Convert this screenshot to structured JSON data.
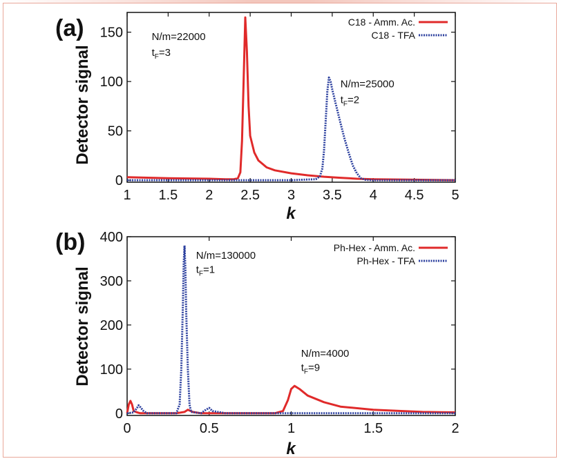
{
  "colors": {
    "red": "#e02a2a",
    "blue": "#2b3f9e",
    "frame": "#e9a79a"
  },
  "chart_data": [
    {
      "type": "line",
      "panel_label": "(a)",
      "xlabel": "k",
      "ylabel": "Detector signal",
      "xlim": [
        1,
        5
      ],
      "ylim": [
        -2,
        170
      ],
      "xticks": [
        1,
        1.5,
        2,
        2.5,
        3,
        3.5,
        4,
        4.5,
        5
      ],
      "xtick_labels": [
        "1",
        "1.5",
        "2",
        "2.5",
        "3",
        "3.5",
        "4",
        "4.5",
        "5"
      ],
      "yticks": [
        0,
        50,
        100,
        150
      ],
      "ytick_labels": [
        "0",
        "50",
        "100",
        "150"
      ],
      "legend_position": "top-right",
      "series": [
        {
          "name": "C18 - Amm. Ac.",
          "color": "#e02a2a",
          "style": "solid",
          "x": [
            1.0,
            1.5,
            2.0,
            2.2,
            2.3,
            2.35,
            2.38,
            2.4,
            2.42,
            2.44,
            2.46,
            2.48,
            2.5,
            2.55,
            2.6,
            2.7,
            2.8,
            3.0,
            3.2,
            3.4,
            3.6,
            3.8,
            4.0,
            4.5,
            5.0
          ],
          "y": [
            3,
            2,
            1.5,
            1,
            1,
            2,
            8,
            40,
            100,
            165,
            130,
            75,
            45,
            28,
            20,
            13,
            10,
            7,
            5,
            3.5,
            2.5,
            1.5,
            1,
            0.5,
            0
          ]
        },
        {
          "name": "C18 - TFA",
          "color": "#2b3f9e",
          "style": "dotted",
          "x": [
            1.0,
            2.0,
            3.0,
            3.3,
            3.35,
            3.38,
            3.4,
            3.42,
            3.44,
            3.46,
            3.48,
            3.5,
            3.55,
            3.6,
            3.65,
            3.7,
            3.75,
            3.8,
            3.85,
            3.9,
            4.0,
            5.0
          ],
          "y": [
            0,
            0,
            0,
            1,
            4,
            12,
            30,
            60,
            90,
            104,
            100,
            92,
            75,
            58,
            42,
            28,
            15,
            7,
            2,
            0.5,
            0,
            0
          ]
        }
      ],
      "annotations": [
        {
          "text": "N/m=22000",
          "x": 1.3,
          "y": 142
        },
        {
          "text": "t",
          "sub": "F",
          "rest": "=3",
          "x": 1.3,
          "y": 126
        },
        {
          "text": "N/m=25000",
          "x": 3.6,
          "y": 94
        },
        {
          "text": "t",
          "sub": "F",
          "rest": "=2",
          "x": 3.6,
          "y": 78
        }
      ]
    },
    {
      "type": "line",
      "panel_label": "(b)",
      "xlabel": "k",
      "ylabel": "Detector signal",
      "xlim": [
        0,
        2
      ],
      "ylim": [
        -5,
        400
      ],
      "xticks": [
        0,
        0.5,
        1,
        1.5,
        2
      ],
      "xtick_labels": [
        "0",
        "0.5",
        "1",
        "1.5",
        "2"
      ],
      "yticks": [
        0,
        100,
        200,
        300,
        400
      ],
      "ytick_labels": [
        "0",
        "100",
        "200",
        "300",
        "400"
      ],
      "legend_position": "top-right",
      "series": [
        {
          "name": "Ph-Hex - Amm. Ac.",
          "color": "#e02a2a",
          "style": "solid",
          "x": [
            0.0,
            0.01,
            0.02,
            0.03,
            0.04,
            0.06,
            0.08,
            0.3,
            0.35,
            0.37,
            0.4,
            0.45,
            0.5,
            0.6,
            0.9,
            0.95,
            0.98,
            1.0,
            1.02,
            1.05,
            1.1,
            1.2,
            1.3,
            1.5,
            1.8,
            2.0
          ],
          "y": [
            0,
            20,
            28,
            20,
            5,
            2,
            0,
            0,
            3,
            8,
            3,
            0,
            0,
            0,
            0,
            5,
            30,
            55,
            62,
            55,
            40,
            25,
            15,
            8,
            3,
            2
          ]
        },
        {
          "name": "Ph-Hex - TFA",
          "color": "#2b3f9e",
          "style": "dotted",
          "x": [
            0.0,
            0.04,
            0.06,
            0.07,
            0.08,
            0.1,
            0.12,
            0.3,
            0.32,
            0.33,
            0.34,
            0.345,
            0.35,
            0.355,
            0.36,
            0.37,
            0.38,
            0.39,
            0.45,
            0.48,
            0.5,
            0.52,
            0.6,
            1.0,
            2.0
          ],
          "y": [
            0,
            2,
            12,
            18,
            14,
            5,
            0,
            0,
            20,
            100,
            250,
            340,
            380,
            330,
            230,
            100,
            20,
            3,
            0,
            8,
            12,
            5,
            0,
            0,
            0
          ]
        }
      ],
      "annotations": [
        {
          "text": "N/m=130000",
          "x": 0.42,
          "y": 350
        },
        {
          "text": "t",
          "sub": "F",
          "rest": "=1",
          "x": 0.42,
          "y": 318
        },
        {
          "text": "N/m=4000",
          "x": 1.06,
          "y": 128
        },
        {
          "text": "t",
          "sub": "F",
          "rest": "=9",
          "x": 1.06,
          "y": 96
        }
      ]
    }
  ]
}
